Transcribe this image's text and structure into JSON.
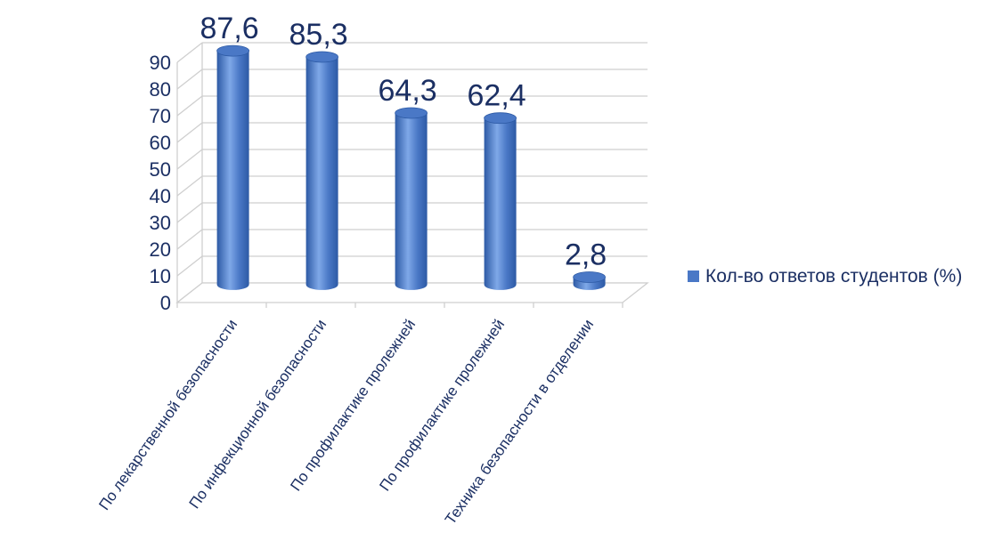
{
  "chart_data": {
    "type": "bar",
    "categories": [
      "По лекарственной безопасности",
      "По инфекционной безопасности",
      "По профилактике пролежней",
      "По профилактике пролежней",
      "Техника безопасности в отделении"
    ],
    "series": [
      {
        "name": "Кол-во ответов студентов (%)",
        "values": [
          87.6,
          85.3,
          64.3,
          62.4,
          2.8
        ],
        "data_labels": [
          "87,6",
          "85,3",
          "64,3",
          "62,4",
          "2,8"
        ]
      }
    ],
    "ylim": [
      0,
      90
    ],
    "yticks": [
      0,
      10,
      20,
      30,
      40,
      50,
      60,
      70,
      80,
      90
    ],
    "title": "",
    "xlabel": "",
    "ylabel": "",
    "grid": true,
    "legend_position": "right",
    "style": "3d-cylinder",
    "colors": {
      "bar": "#4a78c6",
      "bar_dark": "#2d5aa5",
      "bar_light": "#7fa8e8",
      "text": "#1b2f63",
      "grid": "#cfcfcf"
    }
  }
}
